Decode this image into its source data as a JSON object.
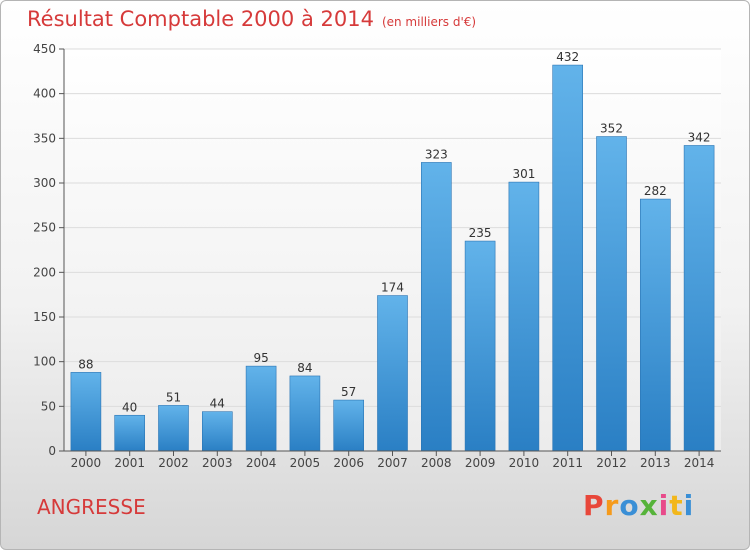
{
  "header": {
    "title": "Résultat Comptable 2000 à 2014",
    "subtitle": "(en milliers d'€)"
  },
  "footer": {
    "commune": "ANGRESSE",
    "logo": "Proxiti"
  },
  "colors": {
    "title": "#d63a3a",
    "bar_top": "#62b3ea",
    "bar_bottom": "#2a7fc4"
  },
  "chart_data": {
    "type": "bar",
    "title": "Résultat Comptable 2000 à 2014",
    "subtitle": "(en milliers d'€)",
    "categories": [
      "2000",
      "2001",
      "2002",
      "2003",
      "2004",
      "2005",
      "2006",
      "2007",
      "2008",
      "2009",
      "2010",
      "2011",
      "2012",
      "2013",
      "2014"
    ],
    "values": [
      88,
      40,
      51,
      44,
      95,
      84,
      57,
      174,
      323,
      235,
      301,
      432,
      352,
      282,
      342
    ],
    "ylim": [
      0,
      450
    ],
    "yticks": [
      0,
      50,
      100,
      150,
      200,
      250,
      300,
      350,
      400,
      450
    ],
    "grid": true,
    "data_labels": true
  }
}
